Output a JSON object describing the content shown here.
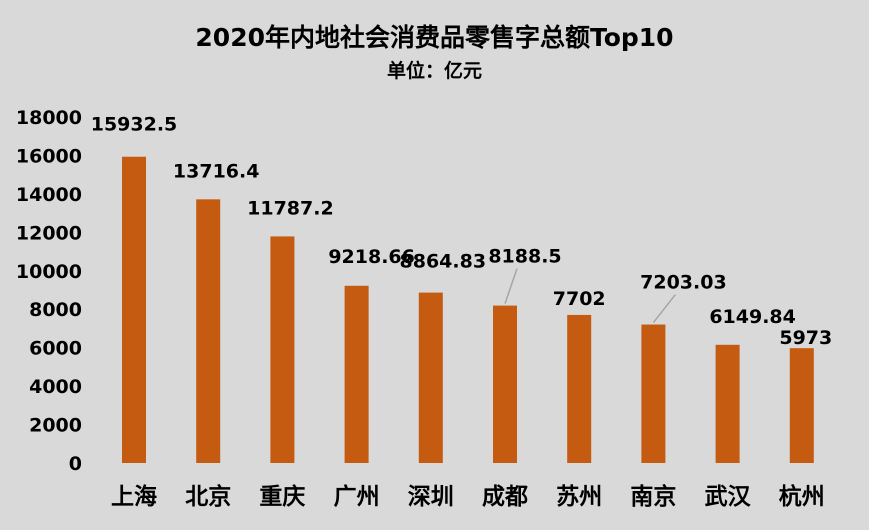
{
  "chart_data": {
    "type": "bar",
    "title": "2020年内地社会消费品零售字总额Top10",
    "subtitle": "单位：亿元",
    "categories": [
      "上海",
      "北京",
      "重庆",
      "广州",
      "深圳",
      "成都",
      "苏州",
      "南京",
      "武汉",
      "杭州"
    ],
    "values": [
      15932.5,
      13716.4,
      11787.2,
      9218.66,
      8864.83,
      8188.5,
      7702,
      7203.03,
      6149.84,
      5973
    ],
    "value_labels": [
      "15932.5",
      "13716.4",
      "11787.2",
      "9218.66",
      "8864.83",
      "8188.5",
      "7702",
      "7203.03",
      "6149.84",
      "5973"
    ],
    "ylim": [
      0,
      18000
    ],
    "yticks": [
      "0",
      "2000",
      "4000",
      "6000",
      "8000",
      "10000",
      "12000",
      "14000",
      "16000",
      "18000"
    ],
    "grid": false,
    "legend": "none",
    "colors": {
      "bar": "#c55a11",
      "background": "#d9d9d9",
      "leader_line": "#a6a6a6"
    }
  }
}
